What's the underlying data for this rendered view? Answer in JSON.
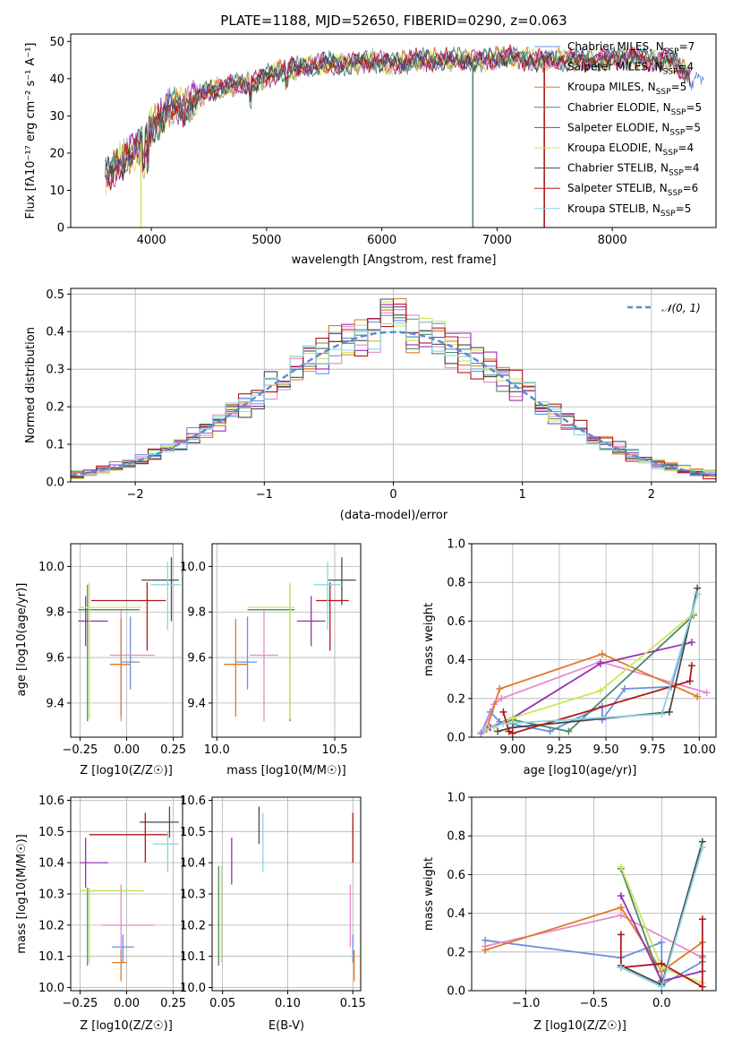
{
  "colors": {
    "Chabrier MILES": "#6a8fe0",
    "Salpeter MILES": "#e68ac8",
    "Kroupa MILES": "#e07a2a",
    "Chabrier ELODIE": "#4f8a6a",
    "Salpeter ELODIE": "#9a2fb0",
    "Kroupa ELODIE": "#c9e85a",
    "Chabrier STELIB": "#4a4a4a",
    "Salpeter STELIB": "#b01818",
    "Kroupa STELIB": "#8ad4e4",
    "normal_curve": "#5b8bd8",
    "grid": "#b0b0b0"
  },
  "chart_data": [
    {
      "id": "spectrum",
      "type": "line",
      "title": "PLATE=1188, MJD=52650, FIBERID=0290, z=0.063",
      "xlabel": "wavelength [Angstrom, rest frame]",
      "ylabel": "Flux [fλ10⁻¹⁷ erg cm⁻² s⁻¹ A⁻¹]",
      "xlim": [
        3300,
        8900
      ],
      "ylim": [
        0,
        52
      ],
      "xticks": [
        4000,
        5000,
        6000,
        7000,
        8000
      ],
      "yticks": [
        0,
        10,
        20,
        30,
        40,
        50
      ],
      "legend_position": "right",
      "series": [
        {
          "name": "Chabrier MILES",
          "label": "Chabrier MILES, N",
          "nssp": "=7"
        },
        {
          "name": "Salpeter MILES",
          "label": "Salpeter MILES, N",
          "nssp": "=4"
        },
        {
          "name": "Kroupa MILES",
          "label": "Kroupa MILES, N",
          "nssp": "=5"
        },
        {
          "name": "Chabrier ELODIE",
          "label": "Chabrier ELODIE, N",
          "nssp": "=5"
        },
        {
          "name": "Salpeter ELODIE",
          "label": "Salpeter ELODIE, N",
          "nssp": "=5"
        },
        {
          "name": "Kroupa ELODIE",
          "label": "Kroupa ELODIE, N",
          "nssp": "=4"
        },
        {
          "name": "Chabrier STELIB",
          "label": "Chabrier STELIB, N",
          "nssp": "=4"
        },
        {
          "name": "Salpeter STELIB",
          "label": "Salpeter STELIB, N",
          "nssp": "=6"
        },
        {
          "name": "Kroupa STELIB",
          "label": "Kroupa STELIB, N",
          "nssp": "=5"
        }
      ],
      "data_envelope": {
        "wavelength": [
          3600,
          3700,
          3800,
          3900,
          4000,
          4100,
          4200,
          4300,
          4400,
          4500,
          4700,
          4900,
          5100,
          5300,
          5500,
          5700,
          5900,
          6100,
          6300,
          6500,
          6700,
          6900,
          7100,
          7300,
          7500,
          7700,
          7900,
          8100,
          8300,
          8500,
          8700
        ],
        "flux": [
          13,
          17,
          19,
          22,
          27,
          30,
          33,
          32,
          35,
          37,
          38,
          39,
          42,
          43,
          44,
          44,
          45,
          44,
          45,
          45,
          45,
          45,
          46,
          45,
          45,
          45,
          45,
          46,
          45,
          45,
          40
        ]
      },
      "dropouts": [
        {
          "x": 3910,
          "y": 0
        },
        {
          "x": 6790,
          "y": 0
        },
        {
          "x": 7410,
          "y": 0
        }
      ]
    },
    {
      "id": "residual_histogram",
      "type": "line",
      "xlabel": "(data-model)/error",
      "ylabel": "Normed distribution",
      "xlim": [
        -2.5,
        2.5
      ],
      "ylim": [
        0,
        0.515
      ],
      "xticks": [
        -2,
        -1,
        0,
        1,
        2
      ],
      "yticks": [
        0.0,
        0.1,
        0.2,
        0.3,
        0.4,
        0.5
      ],
      "legend_position": "top-right",
      "legend_label": "𝒩(0, 1)",
      "bins_per_unit": 10
    },
    {
      "id": "age_vs_Z",
      "type": "scatter",
      "xlabel": "Z [log10(Z/Z☉)]",
      "ylabel": "age  [log10(age/yr)]",
      "xlim": [
        -0.3,
        0.3
      ],
      "ylim": [
        9.25,
        10.1
      ],
      "xticks": [
        -0.25,
        0.0,
        0.25
      ],
      "yticks": [
        9.4,
        9.6,
        9.8,
        10.0
      ],
      "points": [
        {
          "series": "Chabrier MILES",
          "x": 0.02,
          "y": 9.58,
          "xerr": [
            0.05,
            0.05
          ],
          "yerr": [
            0.12,
            0.2
          ]
        },
        {
          "series": "Salpeter MILES",
          "x": -0.03,
          "y": 9.61,
          "xerr": [
            0.06,
            0.18
          ],
          "yerr": [
            0.29,
            0.2
          ]
        },
        {
          "series": "Kroupa MILES",
          "x": -0.03,
          "y": 9.57,
          "xerr": [
            0.06,
            0.05
          ],
          "yerr": [
            0.23,
            0.2
          ]
        },
        {
          "series": "Chabrier ELODIE",
          "x": -0.21,
          "y": 9.81,
          "xerr": [
            0.05,
            0.28
          ],
          "yerr": [
            0.49,
            0.11
          ]
        },
        {
          "series": "Salpeter ELODIE",
          "x": -0.22,
          "y": 9.76,
          "xerr": [
            0.04,
            0.12
          ],
          "yerr": [
            0.11,
            0.11
          ]
        },
        {
          "series": "Kroupa ELODIE",
          "x": -0.2,
          "y": 9.82,
          "xerr": [
            0.05,
            0.28
          ],
          "yerr": [
            0.49,
            0.11
          ]
        },
        {
          "series": "Chabrier STELIB",
          "x": 0.24,
          "y": 9.94,
          "xerr": [
            0.16,
            0.04
          ],
          "yerr": [
            0.18,
            0.1
          ]
        },
        {
          "series": "Salpeter STELIB",
          "x": 0.11,
          "y": 9.85,
          "xerr": [
            0.3,
            0.1
          ],
          "yerr": [
            0.22,
            0.08
          ]
        },
        {
          "series": "Kroupa STELIB",
          "x": 0.22,
          "y": 9.92,
          "xerr": [
            0.09,
            0.07
          ],
          "yerr": [
            0.2,
            0.1
          ]
        }
      ]
    },
    {
      "id": "age_vs_mass",
      "type": "scatter",
      "xlabel": "mass [log10(M/M☉)]",
      "ylabel": "",
      "xlim": [
        9.98,
        10.61
      ],
      "ylim": [
        9.25,
        10.1
      ],
      "xticks": [
        10.0,
        10.5
      ],
      "yticks": [
        9.4,
        9.6,
        9.8,
        10.0
      ],
      "points": [
        {
          "series": "Chabrier MILES",
          "x": 10.13,
          "y": 9.58,
          "xerr": [
            0.05,
            0.04
          ],
          "yerr": [
            0.12,
            0.2
          ]
        },
        {
          "series": "Salpeter MILES",
          "x": 10.2,
          "y": 9.61,
          "xerr": [
            0.06,
            0.06
          ],
          "yerr": [
            0.29,
            0.2
          ]
        },
        {
          "series": "Kroupa MILES",
          "x": 10.08,
          "y": 9.57,
          "xerr": [
            0.05,
            0.05
          ],
          "yerr": [
            0.23,
            0.2
          ]
        },
        {
          "series": "Chabrier ELODIE",
          "x": 10.31,
          "y": 9.81,
          "xerr": [
            0.18,
            0.02
          ],
          "yerr": [
            0.49,
            0.11
          ]
        },
        {
          "series": "Salpeter ELODIE",
          "x": 10.4,
          "y": 9.76,
          "xerr": [
            0.06,
            0.06
          ],
          "yerr": [
            0.11,
            0.11
          ]
        },
        {
          "series": "Kroupa ELODIE",
          "x": 10.31,
          "y": 9.82,
          "xerr": [
            0.18,
            0.02
          ],
          "yerr": [
            0.49,
            0.11
          ]
        },
        {
          "series": "Chabrier STELIB",
          "x": 10.53,
          "y": 9.94,
          "xerr": [
            0.06,
            0.06
          ],
          "yerr": [
            0.11,
            0.1
          ]
        },
        {
          "series": "Salpeter STELIB",
          "x": 10.48,
          "y": 9.85,
          "xerr": [
            0.06,
            0.08
          ],
          "yerr": [
            0.22,
            0.08
          ]
        },
        {
          "series": "Kroupa STELIB",
          "x": 10.47,
          "y": 9.92,
          "xerr": [
            0.06,
            0.06
          ],
          "yerr": [
            0.2,
            0.1
          ]
        }
      ]
    },
    {
      "id": "weight_vs_age",
      "type": "line",
      "xlabel": "age  [log10(age/yr)]",
      "ylabel": "mass weight",
      "xlim": [
        8.78,
        10.09
      ],
      "ylim": [
        0,
        1.0
      ],
      "xticks": [
        9.0,
        9.25,
        9.5,
        9.75,
        10.0
      ],
      "yticks": [
        0.0,
        0.2,
        0.4,
        0.6,
        0.8,
        1.0
      ],
      "series": [
        {
          "name": "Chabrier MILES",
          "x": [
            8.83,
            8.88,
            8.93,
            9.2,
            9.48,
            9.48,
            9.6,
            9.85,
            9.99
          ],
          "y": [
            0.02,
            0.13,
            0.08,
            0.03,
            0.16,
            0.09,
            0.25,
            0.26,
            0.74
          ]
        },
        {
          "name": "Salpeter MILES",
          "x": [
            8.84,
            8.9,
            8.94,
            9.47,
            10.04
          ],
          "y": [
            0.03,
            0.17,
            0.2,
            0.39,
            0.23
          ]
        },
        {
          "name": "Kroupa MILES",
          "x": [
            8.86,
            8.93,
            9.48,
            9.99
          ],
          "y": [
            0.04,
            0.25,
            0.43,
            0.21
          ]
        },
        {
          "name": "Chabrier ELODIE",
          "x": [
            8.88,
            9.0,
            9.3,
            9.97
          ],
          "y": [
            0.05,
            0.09,
            0.03,
            0.63
          ]
        },
        {
          "name": "Salpeter ELODIE",
          "x": [
            8.88,
            9.0,
            9.47,
            9.96
          ],
          "y": [
            0.05,
            0.1,
            0.38,
            0.49
          ]
        },
        {
          "name": "Kroupa ELODIE",
          "x": [
            8.9,
            9.0,
            9.47,
            9.97
          ],
          "y": [
            0.05,
            0.1,
            0.24,
            0.64
          ]
        },
        {
          "name": "Chabrier STELIB",
          "x": [
            8.92,
            9.0,
            9.84,
            9.99
          ],
          "y": [
            0.03,
            0.05,
            0.13,
            0.77
          ]
        },
        {
          "name": "Salpeter STELIB",
          "x": [
            8.95,
            8.98,
            9.0,
            9.95,
            9.96
          ],
          "y": [
            0.13,
            0.03,
            0.02,
            0.29,
            0.37
          ]
        },
        {
          "name": "Kroupa STELIB",
          "x": [
            8.85,
            8.95,
            9.8,
            9.99
          ],
          "y": [
            0.04,
            0.07,
            0.12,
            0.74
          ]
        }
      ]
    },
    {
      "id": "mass_vs_Z",
      "type": "scatter",
      "xlabel": "Z [log10(Z/Z☉)]",
      "ylabel": "mass [log10(M/M☉)]",
      "xlim": [
        -0.3,
        0.3
      ],
      "ylim": [
        9.99,
        10.61
      ],
      "xticks": [
        -0.25,
        0.0,
        0.25
      ],
      "yticks": [
        10.0,
        10.1,
        10.2,
        10.3,
        10.4,
        10.5,
        10.6
      ],
      "points": [
        {
          "series": "Chabrier MILES",
          "x": -0.02,
          "y": 10.13,
          "xerr": [
            0.06,
            0.06
          ],
          "yerr": [
            0.05,
            0.04
          ]
        },
        {
          "series": "Salpeter MILES",
          "x": -0.03,
          "y": 10.2,
          "xerr": [
            0.1,
            0.18
          ],
          "yerr": [
            0.1,
            0.13
          ]
        },
        {
          "series": "Kroupa MILES",
          "x": -0.03,
          "y": 10.08,
          "xerr": [
            0.05,
            0.03
          ],
          "yerr": [
            0.06,
            0.04
          ]
        },
        {
          "series": "Chabrier ELODIE",
          "x": -0.21,
          "y": 10.31,
          "xerr": [
            0.04,
            0.3
          ],
          "yerr": [
            0.24,
            0.01
          ]
        },
        {
          "series": "Salpeter ELODIE",
          "x": -0.22,
          "y": 10.4,
          "xerr": [
            0.03,
            0.12
          ],
          "yerr": [
            0.08,
            0.08
          ]
        },
        {
          "series": "Kroupa ELODIE",
          "x": -0.2,
          "y": 10.31,
          "xerr": [
            0.05,
            0.29
          ],
          "yerr": [
            0.23,
            0.01
          ]
        },
        {
          "series": "Chabrier STELIB",
          "x": 0.23,
          "y": 10.53,
          "xerr": [
            0.16,
            0.05
          ],
          "yerr": [
            0.05,
            0.05
          ]
        },
        {
          "series": "Salpeter STELIB",
          "x": 0.1,
          "y": 10.49,
          "xerr": [
            0.3,
            0.12
          ],
          "yerr": [
            0.09,
            0.07
          ]
        },
        {
          "series": "Kroupa STELIB",
          "x": 0.22,
          "y": 10.46,
          "xerr": [
            0.08,
            0.06
          ],
          "yerr": [
            0.09,
            0.04
          ]
        }
      ]
    },
    {
      "id": "mass_vs_EBV",
      "type": "scatter",
      "xlabel": "E(B-V)",
      "ylabel": "",
      "xlim": [
        0.042,
        0.156
      ],
      "ylim": [
        9.99,
        10.61
      ],
      "xticks": [
        0.05,
        0.1,
        0.15
      ],
      "yticks": [
        10.0,
        10.1,
        10.2,
        10.3,
        10.4,
        10.5,
        10.6
      ],
      "points": [
        {
          "series": "Chabrier MILES",
          "x": 0.15,
          "y": 10.13,
          "xerr": [
            0,
            0
          ],
          "yerr": [
            0.05,
            0.04
          ]
        },
        {
          "series": "Salpeter MILES",
          "x": 0.148,
          "y": 10.2,
          "xerr": [
            0,
            0
          ],
          "yerr": [
            0.07,
            0.13
          ]
        },
        {
          "series": "Kroupa MILES",
          "x": 0.151,
          "y": 10.08,
          "xerr": [
            0,
            0
          ],
          "yerr": [
            0.06,
            0.04
          ]
        },
        {
          "series": "Chabrier ELODIE",
          "x": 0.047,
          "y": 10.31,
          "xerr": [
            0,
            0
          ],
          "yerr": [
            0.24,
            0.08
          ]
        },
        {
          "series": "Salpeter ELODIE",
          "x": 0.057,
          "y": 10.4,
          "xerr": [
            0,
            0
          ],
          "yerr": [
            0.07,
            0.08
          ]
        },
        {
          "series": "Kroupa ELODIE",
          "x": 0.049,
          "y": 10.31,
          "xerr": [
            0,
            0
          ],
          "yerr": [
            0.23,
            0.08
          ]
        },
        {
          "series": "Chabrier STELIB",
          "x": 0.078,
          "y": 10.53,
          "xerr": [
            0,
            0
          ],
          "yerr": [
            0.07,
            0.05
          ]
        },
        {
          "series": "Salpeter STELIB",
          "x": 0.15,
          "y": 10.49,
          "xerr": [
            0,
            0
          ],
          "yerr": [
            0.09,
            0.07
          ]
        },
        {
          "series": "Kroupa STELIB",
          "x": 0.081,
          "y": 10.46,
          "xerr": [
            0,
            0
          ],
          "yerr": [
            0.09,
            0.1
          ]
        }
      ]
    },
    {
      "id": "weight_vs_Z",
      "type": "line",
      "xlabel": "Z [log10(Z/Z☉)]",
      "ylabel": "mass weight",
      "xlim": [
        -1.4,
        0.4
      ],
      "ylim": [
        0,
        1.0
      ],
      "xticks": [
        -1.0,
        -0.5,
        0.0
      ],
      "yticks": [
        0.0,
        0.2,
        0.4,
        0.6,
        0.8,
        1.0
      ],
      "series": [
        {
          "name": "Chabrier MILES",
          "x": [
            -1.3,
            -0.3,
            0.0,
            0.0,
            0.3,
            0.3
          ],
          "y": [
            0.26,
            0.17,
            0.25,
            0.03,
            0.15,
            0.18
          ]
        },
        {
          "name": "Salpeter MILES",
          "x": [
            -1.3,
            -0.3,
            0.3
          ],
          "y": [
            0.23,
            0.39,
            0.17
          ]
        },
        {
          "name": "Kroupa MILES",
          "x": [
            -1.3,
            -0.3,
            0.0,
            0.3
          ],
          "y": [
            0.21,
            0.43,
            0.1,
            0.25
          ]
        },
        {
          "name": "Chabrier ELODIE",
          "x": [
            -0.3,
            0.0
          ],
          "y": [
            0.63,
            0.04
          ]
        },
        {
          "name": "Salpeter ELODIE",
          "x": [
            -0.3,
            0.0,
            0.3
          ],
          "y": [
            0.49,
            0.05,
            0.1
          ]
        },
        {
          "name": "Kroupa ELODIE",
          "x": [
            -0.3,
            0.0,
            0.3
          ],
          "y": [
            0.64,
            0.12,
            0.04
          ]
        },
        {
          "name": "Chabrier STELIB",
          "x": [
            -0.3,
            0.0,
            0.3
          ],
          "y": [
            0.13,
            0.03,
            0.77
          ]
        },
        {
          "name": "Salpeter STELIB",
          "x": [
            -0.3,
            -0.3,
            0.0,
            0.3,
            0.3
          ],
          "y": [
            0.29,
            0.12,
            0.14,
            0.02,
            0.37
          ]
        },
        {
          "name": "Kroupa STELIB",
          "x": [
            -0.3,
            0.0,
            0.3
          ],
          "y": [
            0.12,
            0.02,
            0.74
          ]
        }
      ]
    }
  ]
}
